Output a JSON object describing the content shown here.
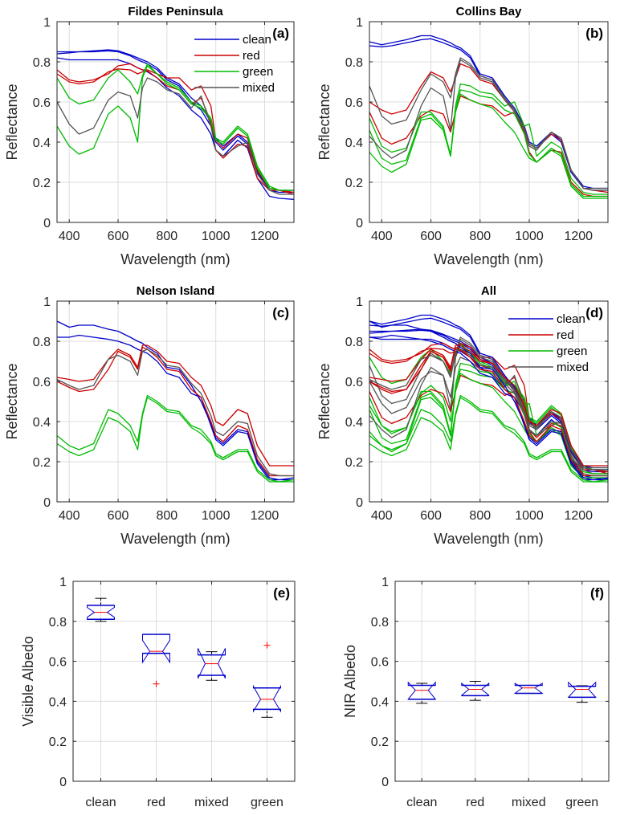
{
  "colors": {
    "clean": "#0000cc",
    "red": "#cc0000",
    "green": "#00bb00",
    "mixed": "#555555",
    "outlier": "#ff0000",
    "median": "#ff0000",
    "whisker": "#000000",
    "grid": "#dddddd",
    "axis": "#262626"
  },
  "chart_data": [
    {
      "id": "a",
      "type": "line",
      "title": "Fildes Peninsula",
      "tag": "(a)",
      "xlabel": "Wavelength (nm)",
      "ylabel": "Reflectance",
      "xlim": [
        350,
        1320
      ],
      "ylim": [
        0,
        1
      ],
      "xticks": [
        400,
        600,
        800,
        1000,
        1200
      ],
      "yticks": [
        0,
        0.2,
        0.4,
        0.6,
        0.8,
        1
      ],
      "ytick_labels": [
        "0",
        "0.2",
        "0.4",
        "0.6",
        "0.8",
        "1"
      ],
      "grid": true,
      "legend": {
        "placement": "top-right",
        "entries": [
          "clean",
          "red",
          "green",
          "mixed"
        ]
      },
      "x": [
        350,
        400,
        440,
        500,
        560,
        600,
        650,
        680,
        700,
        720,
        760,
        800,
        850,
        900,
        940,
        980,
        1000,
        1030,
        1090,
        1130,
        1170,
        1220,
        1260,
        1320
      ],
      "series": [
        {
          "name": "clean",
          "values": [
            0.85,
            0.85,
            0.85,
            0.855,
            0.86,
            0.855,
            0.835,
            0.82,
            0.81,
            0.8,
            0.77,
            0.72,
            0.69,
            0.62,
            0.58,
            0.5,
            0.42,
            0.38,
            0.44,
            0.4,
            0.26,
            0.17,
            0.16,
            0.16
          ]
        },
        {
          "name": "clean",
          "values": [
            0.84,
            0.845,
            0.85,
            0.85,
            0.855,
            0.85,
            0.83,
            0.81,
            0.8,
            0.79,
            0.76,
            0.71,
            0.68,
            0.6,
            0.56,
            0.48,
            0.4,
            0.36,
            0.43,
            0.39,
            0.25,
            0.16,
            0.15,
            0.15
          ]
        },
        {
          "name": "clean",
          "values": [
            0.82,
            0.81,
            0.81,
            0.81,
            0.81,
            0.81,
            0.79,
            0.77,
            0.76,
            0.75,
            0.72,
            0.67,
            0.63,
            0.56,
            0.52,
            0.44,
            0.36,
            0.33,
            0.41,
            0.37,
            0.22,
            0.13,
            0.12,
            0.115
          ]
        },
        {
          "name": "red",
          "values": [
            0.76,
            0.71,
            0.7,
            0.71,
            0.74,
            0.78,
            0.79,
            0.77,
            0.76,
            0.76,
            0.74,
            0.72,
            0.72,
            0.66,
            0.68,
            0.58,
            0.41,
            0.37,
            0.44,
            0.42,
            0.26,
            0.17,
            0.16,
            0.15
          ]
        },
        {
          "name": "red",
          "values": [
            0.74,
            0.7,
            0.69,
            0.7,
            0.75,
            0.765,
            0.76,
            0.74,
            0.75,
            0.755,
            0.72,
            0.68,
            0.66,
            0.59,
            0.62,
            0.5,
            0.36,
            0.32,
            0.39,
            0.38,
            0.22,
            0.16,
            0.16,
            0.14
          ]
        },
        {
          "name": "green",
          "values": [
            0.72,
            0.62,
            0.59,
            0.61,
            0.72,
            0.76,
            0.7,
            0.64,
            0.73,
            0.79,
            0.74,
            0.7,
            0.67,
            0.6,
            0.58,
            0.52,
            0.42,
            0.4,
            0.48,
            0.44,
            0.28,
            0.18,
            0.16,
            0.16
          ]
        },
        {
          "name": "green",
          "values": [
            0.48,
            0.38,
            0.34,
            0.37,
            0.54,
            0.58,
            0.52,
            0.4,
            0.72,
            0.78,
            0.74,
            0.69,
            0.66,
            0.59,
            0.57,
            0.51,
            0.41,
            0.39,
            0.47,
            0.43,
            0.27,
            0.17,
            0.16,
            0.16
          ]
        },
        {
          "name": "mixed",
          "values": [
            0.6,
            0.49,
            0.44,
            0.47,
            0.61,
            0.65,
            0.63,
            0.52,
            0.67,
            0.72,
            0.7,
            0.66,
            0.64,
            0.57,
            0.63,
            0.48,
            0.36,
            0.33,
            0.38,
            0.4,
            0.24,
            0.16,
            0.14,
            0.14
          ]
        }
      ]
    },
    {
      "id": "b",
      "type": "line",
      "title": "Collins Bay",
      "tag": "(b)",
      "xlabel": "Wavelength (nm)",
      "ylabel": "Reflectance",
      "xlim": [
        350,
        1320
      ],
      "ylim": [
        0,
        1
      ],
      "xticks": [
        400,
        600,
        800,
        1000,
        1200
      ],
      "yticks": [
        0,
        0.2,
        0.4,
        0.6,
        0.8,
        1
      ],
      "ytick_labels": [
        "0",
        "0.2",
        "0.4",
        "0.6",
        "0.8",
        "1"
      ],
      "grid": true,
      "legend": null,
      "x": [
        350,
        400,
        440,
        500,
        560,
        600,
        650,
        680,
        700,
        720,
        760,
        800,
        850,
        900,
        940,
        980,
        1000,
        1030,
        1090,
        1130,
        1170,
        1220,
        1260,
        1320
      ],
      "series": [
        {
          "name": "clean",
          "values": [
            0.9,
            0.885,
            0.895,
            0.91,
            0.93,
            0.93,
            0.91,
            0.895,
            0.88,
            0.87,
            0.83,
            0.74,
            0.72,
            0.63,
            0.57,
            0.48,
            0.4,
            0.38,
            0.45,
            0.41,
            0.26,
            0.18,
            0.17,
            0.17
          ]
        },
        {
          "name": "clean",
          "values": [
            0.88,
            0.875,
            0.88,
            0.895,
            0.91,
            0.915,
            0.895,
            0.88,
            0.87,
            0.86,
            0.82,
            0.73,
            0.71,
            0.62,
            0.56,
            0.47,
            0.39,
            0.37,
            0.44,
            0.4,
            0.25,
            0.17,
            0.16,
            0.16
          ]
        },
        {
          "name": "red",
          "values": [
            0.6,
            0.56,
            0.54,
            0.56,
            0.68,
            0.75,
            0.72,
            0.65,
            0.72,
            0.79,
            0.77,
            0.71,
            0.69,
            0.61,
            0.56,
            0.47,
            0.39,
            0.37,
            0.44,
            0.41,
            0.26,
            0.17,
            0.16,
            0.15
          ]
        },
        {
          "name": "red",
          "values": [
            0.55,
            0.42,
            0.39,
            0.42,
            0.53,
            0.56,
            0.54,
            0.45,
            0.55,
            0.63,
            0.61,
            0.59,
            0.58,
            0.53,
            0.55,
            0.45,
            0.35,
            0.3,
            0.36,
            0.35,
            0.2,
            0.14,
            0.13,
            0.13
          ]
        },
        {
          "name": "green",
          "values": [
            0.52,
            0.38,
            0.35,
            0.37,
            0.55,
            0.55,
            0.48,
            0.33,
            0.58,
            0.69,
            0.68,
            0.65,
            0.64,
            0.58,
            0.6,
            0.48,
            0.49,
            0.33,
            0.4,
            0.37,
            0.22,
            0.15,
            0.14,
            0.14
          ]
        },
        {
          "name": "green",
          "values": [
            0.46,
            0.32,
            0.29,
            0.31,
            0.52,
            0.54,
            0.47,
            0.34,
            0.56,
            0.66,
            0.65,
            0.63,
            0.62,
            0.56,
            0.54,
            0.44,
            0.34,
            0.3,
            0.37,
            0.34,
            0.19,
            0.13,
            0.13,
            0.13
          ]
        },
        {
          "name": "green",
          "values": [
            0.35,
            0.28,
            0.25,
            0.29,
            0.51,
            0.52,
            0.46,
            0.33,
            0.55,
            0.64,
            0.61,
            0.59,
            0.57,
            0.5,
            0.45,
            0.36,
            0.32,
            0.3,
            0.36,
            0.33,
            0.18,
            0.12,
            0.12,
            0.12
          ]
        },
        {
          "name": "mixed",
          "values": [
            0.68,
            0.53,
            0.49,
            0.51,
            0.66,
            0.74,
            0.7,
            0.62,
            0.74,
            0.82,
            0.79,
            0.73,
            0.71,
            0.62,
            0.56,
            0.47,
            0.39,
            0.37,
            0.45,
            0.42,
            0.26,
            0.17,
            0.17,
            0.17
          ]
        },
        {
          "name": "mixed",
          "values": [
            0.43,
            0.36,
            0.32,
            0.36,
            0.58,
            0.67,
            0.63,
            0.46,
            0.72,
            0.81,
            0.78,
            0.72,
            0.7,
            0.61,
            0.55,
            0.46,
            0.38,
            0.36,
            0.45,
            0.42,
            0.26,
            0.17,
            0.16,
            0.16
          ]
        }
      ]
    },
    {
      "id": "c",
      "type": "line",
      "title": "Nelson Island",
      "tag": "(c)",
      "xlabel": "Wavelength (nm)",
      "ylabel": "Reflectance",
      "xlim": [
        350,
        1320
      ],
      "ylim": [
        0,
        1
      ],
      "xticks": [
        400,
        600,
        800,
        1000,
        1200
      ],
      "yticks": [
        0,
        0.2,
        0.4,
        0.6,
        0.8,
        1
      ],
      "ytick_labels": [
        "0",
        "0.2",
        "0.4",
        "0.6",
        "0.8",
        "1"
      ],
      "grid": true,
      "legend": null,
      "x": [
        350,
        400,
        440,
        500,
        560,
        600,
        650,
        680,
        700,
        720,
        760,
        800,
        850,
        900,
        940,
        980,
        1000,
        1030,
        1090,
        1130,
        1170,
        1220,
        1260,
        1320
      ],
      "series": [
        {
          "name": "clean",
          "values": [
            0.9,
            0.87,
            0.88,
            0.88,
            0.86,
            0.85,
            0.82,
            0.8,
            0.79,
            0.77,
            0.74,
            0.67,
            0.66,
            0.58,
            0.5,
            0.39,
            0.32,
            0.29,
            0.36,
            0.35,
            0.2,
            0.12,
            0.11,
            0.12
          ]
        },
        {
          "name": "clean",
          "values": [
            0.82,
            0.82,
            0.83,
            0.82,
            0.81,
            0.8,
            0.78,
            0.76,
            0.75,
            0.74,
            0.7,
            0.64,
            0.62,
            0.54,
            0.52,
            0.38,
            0.31,
            0.28,
            0.35,
            0.34,
            0.19,
            0.11,
            0.11,
            0.11
          ]
        },
        {
          "name": "red",
          "values": [
            0.62,
            0.61,
            0.6,
            0.61,
            0.71,
            0.76,
            0.73,
            0.67,
            0.78,
            0.78,
            0.75,
            0.7,
            0.69,
            0.62,
            0.58,
            0.48,
            0.4,
            0.38,
            0.46,
            0.44,
            0.28,
            0.18,
            0.18,
            0.18
          ]
        },
        {
          "name": "red",
          "values": [
            0.6,
            0.57,
            0.55,
            0.56,
            0.66,
            0.75,
            0.72,
            0.66,
            0.77,
            0.76,
            0.72,
            0.66,
            0.65,
            0.56,
            0.52,
            0.4,
            0.33,
            0.3,
            0.38,
            0.36,
            0.21,
            0.13,
            0.13,
            0.13
          ]
        },
        {
          "name": "green",
          "values": [
            0.33,
            0.28,
            0.26,
            0.29,
            0.46,
            0.44,
            0.38,
            0.3,
            0.44,
            0.53,
            0.5,
            0.46,
            0.45,
            0.38,
            0.36,
            0.3,
            0.24,
            0.22,
            0.26,
            0.26,
            0.16,
            0.11,
            0.1,
            0.11
          ]
        },
        {
          "name": "green",
          "values": [
            0.29,
            0.25,
            0.23,
            0.26,
            0.42,
            0.4,
            0.35,
            0.26,
            0.43,
            0.52,
            0.49,
            0.45,
            0.44,
            0.37,
            0.34,
            0.29,
            0.23,
            0.21,
            0.25,
            0.25,
            0.15,
            0.1,
            0.1,
            0.1
          ]
        },
        {
          "name": "mixed",
          "values": [
            0.61,
            0.58,
            0.56,
            0.58,
            0.71,
            0.73,
            0.7,
            0.63,
            0.75,
            0.76,
            0.73,
            0.68,
            0.67,
            0.59,
            0.54,
            0.43,
            0.35,
            0.33,
            0.4,
            0.39,
            0.23,
            0.14,
            0.13,
            0.13
          ]
        }
      ]
    },
    {
      "id": "d",
      "type": "line",
      "title": "All",
      "tag": "(d)",
      "xlabel": "Wavelength (nm)",
      "ylabel": "Reflectance",
      "xlim": [
        350,
        1320
      ],
      "ylim": [
        0,
        1
      ],
      "xticks": [
        400,
        600,
        800,
        1000,
        1200
      ],
      "yticks": [
        0,
        0.2,
        0.4,
        0.6,
        0.8,
        1
      ],
      "ytick_labels": [
        "0",
        "0.2",
        "0.4",
        "0.6",
        "0.8",
        "1"
      ],
      "grid": true,
      "legend": {
        "placement": "top-right",
        "entries": [
          "clean",
          "red",
          "green",
          "mixed"
        ]
      },
      "combines": [
        "a",
        "b",
        "c"
      ]
    },
    {
      "id": "e",
      "type": "box",
      "title": "",
      "tag": "(e)",
      "xlabel": "",
      "ylabel": "Visible Albedo",
      "categories": [
        "clean",
        "red",
        "mixed",
        "green"
      ],
      "ylim": [
        0,
        1
      ],
      "yticks": [
        0,
        0.2,
        0.4,
        0.6,
        0.8,
        1
      ],
      "ytick_labels": [
        "0",
        "0.2",
        "0.4",
        "0.6",
        "0.8",
        "1"
      ],
      "grid": true,
      "boxes": [
        {
          "category": "clean",
          "whisker_low": 0.8,
          "q1": 0.81,
          "median": 0.845,
          "q3": 0.88,
          "whisker_high": 0.915,
          "notch_low": 0.82,
          "notch_high": 0.87,
          "outliers": []
        },
        {
          "category": "red",
          "whisker_low": 0.64,
          "q1": 0.64,
          "median": 0.65,
          "q3": 0.735,
          "whisker_high": 0.735,
          "notch_low": 0.595,
          "notch_high": 0.705,
          "outliers": [
            0.487
          ]
        },
        {
          "category": "mixed",
          "whisker_low": 0.505,
          "q1": 0.53,
          "median": 0.588,
          "q3": 0.632,
          "whisker_high": 0.648,
          "notch_low": 0.515,
          "notch_high": 0.665,
          "outliers": []
        },
        {
          "category": "green",
          "whisker_low": 0.32,
          "q1": 0.36,
          "median": 0.41,
          "q3": 0.467,
          "whisker_high": 0.467,
          "notch_low": 0.35,
          "notch_high": 0.475,
          "outliers": [
            0.68
          ]
        }
      ]
    },
    {
      "id": "f",
      "type": "box",
      "title": "",
      "tag": "(f)",
      "xlabel": "",
      "ylabel": "NIR Albedo",
      "categories": [
        "clean",
        "red",
        "mixed",
        "green"
      ],
      "ylim": [
        0,
        1
      ],
      "yticks": [
        0,
        0.2,
        0.4,
        0.6,
        0.8,
        1
      ],
      "ytick_labels": [
        "0",
        "0.2",
        "0.4",
        "0.6",
        "0.8",
        "1"
      ],
      "grid": true,
      "boxes": [
        {
          "category": "clean",
          "whisker_low": 0.39,
          "q1": 0.41,
          "median": 0.455,
          "q3": 0.48,
          "whisker_high": 0.49,
          "notch_low": 0.41,
          "notch_high": 0.495,
          "outliers": []
        },
        {
          "category": "red",
          "whisker_low": 0.405,
          "q1": 0.428,
          "median": 0.46,
          "q3": 0.48,
          "whisker_high": 0.5,
          "notch_low": 0.43,
          "notch_high": 0.49,
          "outliers": []
        },
        {
          "category": "mixed",
          "whisker_low": 0.44,
          "q1": 0.44,
          "median": 0.467,
          "q3": 0.48,
          "whisker_high": 0.48,
          "notch_low": 0.44,
          "notch_high": 0.49,
          "outliers": []
        },
        {
          "category": "green",
          "whisker_low": 0.395,
          "q1": 0.42,
          "median": 0.46,
          "q3": 0.475,
          "whisker_high": 0.478,
          "notch_low": 0.42,
          "notch_high": 0.495,
          "outliers": []
        }
      ]
    }
  ]
}
